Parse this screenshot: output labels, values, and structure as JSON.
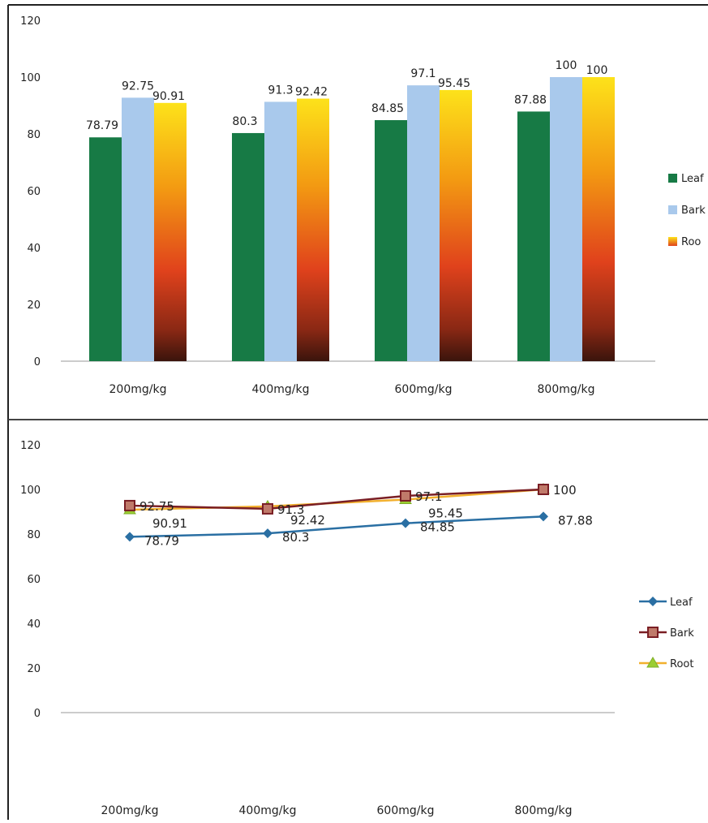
{
  "chart_data": [
    {
      "type": "bar",
      "categories": [
        "200mg/kg",
        "400mg/kg",
        "600mg/kg",
        "800mg/kg"
      ],
      "series": [
        {
          "name": "Leaf",
          "values": [
            78.79,
            80.3,
            84.85,
            87.88
          ],
          "color": "#177a45"
        },
        {
          "name": "Bark",
          "values": [
            92.75,
            91.3,
            97.1,
            100
          ],
          "color": "#a9c9ec"
        },
        {
          "name": "Root",
          "values": [
            90.91,
            92.42,
            95.45,
            100
          ],
          "color": "#f39a12"
        }
      ],
      "value_labels": [
        [
          "78.79",
          "80.3",
          "84.85",
          "87.88"
        ],
        [
          "92.75",
          "91.3",
          "97.1",
          "100"
        ],
        [
          "90.91",
          "92.42",
          "95.45",
          "100"
        ]
      ],
      "y_ticks": [
        "0",
        "20",
        "40",
        "60",
        "80",
        "100",
        "120"
      ],
      "ylim": [
        0,
        120
      ],
      "legend_labels": [
        "Leaf",
        "Bark",
        "Roo"
      ],
      "legend_position": "right",
      "grid": false
    },
    {
      "type": "line",
      "categories": [
        "200mg/kg",
        "400mg/kg",
        "600mg/kg",
        "800mg/kg"
      ],
      "series": [
        {
          "name": "Leaf",
          "values": [
            78.79,
            80.3,
            84.85,
            87.88
          ],
          "color": "#2a6fa3",
          "marker": "diamond"
        },
        {
          "name": "Bark",
          "values": [
            92.75,
            91.3,
            97.1,
            100
          ],
          "color": "#7a1e24",
          "marker": "square"
        },
        {
          "name": "Root",
          "values": [
            90.91,
            92.42,
            95.45,
            100
          ],
          "color": "#f2b02e",
          "marker": "triangle"
        }
      ],
      "value_labels": [
        [
          "78.79",
          "80.3",
          "84.85",
          "87.88"
        ],
        [
          "92.75",
          "91.3",
          "97.1",
          "100"
        ],
        [
          "90.91",
          "92.42",
          "95.45",
          ""
        ]
      ],
      "y_ticks": [
        "0",
        "20",
        "40",
        "60",
        "80",
        "100",
        "120"
      ],
      "ylim": [
        0,
        120
      ],
      "legend_labels": [
        "Leaf",
        "Bark",
        "Root"
      ],
      "legend_position": "right",
      "grid": false
    }
  ]
}
